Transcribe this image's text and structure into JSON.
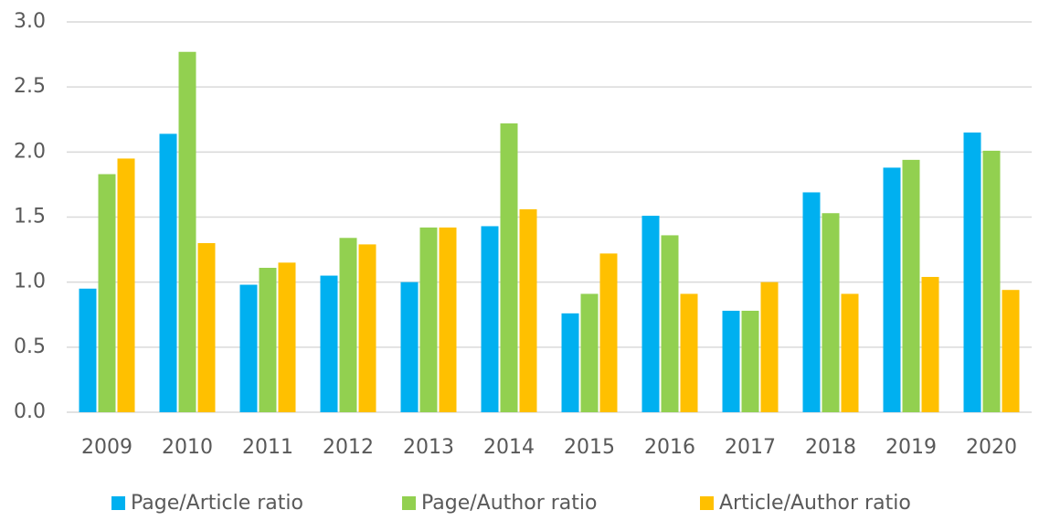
{
  "chart_data": {
    "type": "bar",
    "categories": [
      "2009",
      "2010",
      "2011",
      "2012",
      "2013",
      "2014",
      "2015",
      "2016",
      "2017",
      "2018",
      "2019",
      "2020"
    ],
    "series": [
      {
        "name": "Page/Article ratio",
        "color": "#00b0f0",
        "values": [
          0.95,
          2.14,
          0.98,
          1.05,
          1.0,
          1.43,
          0.76,
          1.51,
          0.78,
          1.69,
          1.88,
          2.15
        ]
      },
      {
        "name": "Page/Author ratio",
        "color": "#92d050",
        "values": [
          1.83,
          2.77,
          1.11,
          1.34,
          1.42,
          2.22,
          0.91,
          1.36,
          0.78,
          1.53,
          1.94,
          2.01
        ]
      },
      {
        "name": "Article/Author ratio",
        "color": "#ffc000",
        "values": [
          1.95,
          1.3,
          1.15,
          1.29,
          1.42,
          1.56,
          1.22,
          0.91,
          1.0,
          0.91,
          1.04,
          0.94
        ]
      }
    ],
    "ylim": [
      0,
      3
    ],
    "yticks": [
      {
        "value": 0,
        "label": "0.0"
      },
      {
        "value": 0.5,
        "label": "0.5"
      },
      {
        "value": 1,
        "label": "1.0"
      },
      {
        "value": 1.5,
        "label": "1.5"
      },
      {
        "value": 2,
        "label": "2.0"
      },
      {
        "value": 2.5,
        "label": "2.5"
      },
      {
        "value": 3,
        "label": "3.0"
      }
    ],
    "grid": true,
    "legend": "bottom"
  }
}
